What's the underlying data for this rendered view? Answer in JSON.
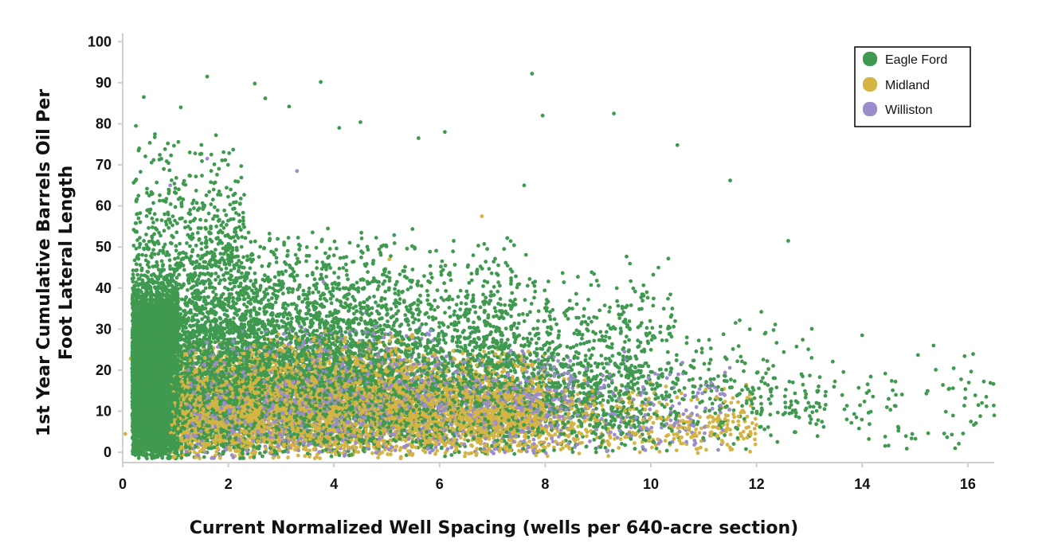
{
  "chart_data": {
    "type": "scatter",
    "title": "",
    "xlabel": "Current Normalized Well Spacing (wells per 640-acre section)",
    "ylabel_lines": [
      "1st Year Cumulative Barrels Oil Per",
      "Foot Lateral Length"
    ],
    "xlim": [
      0,
      16.5
    ],
    "ylim": [
      -2.5,
      102
    ],
    "x_ticks": [
      0,
      2,
      4,
      6,
      8,
      10,
      12,
      14,
      16
    ],
    "y_ticks": [
      0,
      10,
      20,
      30,
      40,
      50,
      60,
      70,
      80,
      90,
      100
    ],
    "grid": false,
    "legend_position": "top-right",
    "series": [
      {
        "name": "Eagle Ford",
        "color": "#3f9a4f",
        "note": "densest cluster 0.2-1.5 wells/section, 0-60 bbl/ft; sparse tail to 16.5",
        "points": [
          [
            0.4,
            86.5
          ],
          [
            1.6,
            91.5
          ],
          [
            2.5,
            89.8
          ],
          [
            3.75,
            90.2
          ],
          [
            7.75,
            92.2
          ],
          [
            7.95,
            82.0
          ],
          [
            9.3,
            82.5
          ],
          [
            10.5,
            74.8
          ],
          [
            11.5,
            66.2
          ],
          [
            12.6,
            51.5
          ],
          [
            14.0,
            28.5
          ],
          [
            15.35,
            26.0
          ],
          [
            15.65,
            15.5
          ],
          [
            16.2,
            11.5
          ],
          [
            16.5,
            9.0
          ],
          [
            4.5,
            80.4
          ],
          [
            3.15,
            84.2
          ],
          [
            5.6,
            76.5
          ],
          [
            6.1,
            78.0
          ],
          [
            7.6,
            65.0
          ],
          [
            1.1,
            84.0
          ],
          [
            0.25,
            79.5
          ],
          [
            0.3,
            73.5
          ],
          [
            2.7,
            86.2
          ],
          [
            4.1,
            79.0
          ]
        ]
      },
      {
        "name": "Midland",
        "color": "#d4b443",
        "note": "dense band 1-8 wells/section, 0-25 bbl/ft; sparse to ~12",
        "points": [
          [
            0.05,
            4.5
          ],
          [
            0.15,
            22.8
          ],
          [
            0.2,
            16.0
          ],
          [
            6.8,
            57.5
          ],
          [
            5.05,
            47.0
          ],
          [
            11.9,
            13.0
          ],
          [
            11.5,
            5.5
          ],
          [
            10.3,
            8.0
          ],
          [
            2.4,
            26.0
          ],
          [
            3.5,
            23.0
          ]
        ]
      },
      {
        "name": "Williston",
        "color": "#9b8ccc",
        "note": "spread 1-11 wells/section, mostly 0-30 bbl/ft",
        "points": [
          [
            1.6,
            71.5
          ],
          [
            3.3,
            68.5
          ],
          [
            0.9,
            65.0
          ],
          [
            3.8,
            41.5
          ],
          [
            9.5,
            24.5
          ],
          [
            11.0,
            3.0
          ],
          [
            9.2,
            21.5
          ],
          [
            2.2,
            45.0
          ],
          [
            4.6,
            34.0
          ],
          [
            7.3,
            19.0
          ]
        ]
      }
    ],
    "generated_density": [
      {
        "series": 0,
        "n": 6200,
        "xmin": 0.18,
        "xmax": 1.05,
        "ymin": -1.5,
        "ymax": 45,
        "ymode": 17
      },
      {
        "series": 0,
        "n": 2200,
        "xmin": 1.0,
        "xmax": 2.6,
        "ymin": -1.5,
        "ymax": 55,
        "ymode": 14
      },
      {
        "series": 0,
        "n": 420,
        "xmin": 0.2,
        "xmax": 2.3,
        "ymin": 40,
        "ymax": 80,
        "ymode": 48
      },
      {
        "series": 0,
        "n": 2100,
        "xmin": 2.6,
        "xmax": 5.0,
        "ymin": -1,
        "ymax": 55,
        "ymode": 15
      },
      {
        "series": 0,
        "n": 1200,
        "xmin": 5.0,
        "xmax": 7.5,
        "ymin": -1,
        "ymax": 55,
        "ymode": 12
      },
      {
        "series": 0,
        "n": 600,
        "xmin": 7.5,
        "xmax": 10.5,
        "ymin": 0,
        "ymax": 50,
        "ymode": 11
      },
      {
        "series": 0,
        "n": 230,
        "xmin": 10.5,
        "xmax": 13.2,
        "ymin": 0,
        "ymax": 35,
        "ymode": 10
      },
      {
        "series": 0,
        "n": 90,
        "xmin": 13.2,
        "xmax": 16.5,
        "ymin": 0,
        "ymax": 25,
        "ymode": 9
      },
      {
        "series": 1,
        "n": 1300,
        "xmin": 0.9,
        "xmax": 2.6,
        "ymin": -1.5,
        "ymax": 28,
        "ymode": 9
      },
      {
        "series": 1,
        "n": 2200,
        "xmin": 2.4,
        "xmax": 5.5,
        "ymin": -1.5,
        "ymax": 30,
        "ymode": 11
      },
      {
        "series": 1,
        "n": 1200,
        "xmin": 5.5,
        "xmax": 8.0,
        "ymin": -1,
        "ymax": 26,
        "ymode": 8
      },
      {
        "series": 1,
        "n": 300,
        "xmin": 8.0,
        "xmax": 12.0,
        "ymin": -1,
        "ymax": 18,
        "ymode": 6
      },
      {
        "series": 2,
        "n": 500,
        "xmin": 1.2,
        "xmax": 3.0,
        "ymin": -1.5,
        "ymax": 30,
        "ymode": 8
      },
      {
        "series": 2,
        "n": 950,
        "xmin": 3.0,
        "xmax": 6.0,
        "ymin": -1,
        "ymax": 32,
        "ymode": 12
      },
      {
        "series": 2,
        "n": 480,
        "xmin": 6.0,
        "xmax": 8.5,
        "ymin": -1,
        "ymax": 26,
        "ymode": 11
      },
      {
        "series": 2,
        "n": 160,
        "xmin": 8.5,
        "xmax": 11.5,
        "ymin": -1,
        "ymax": 24,
        "ymode": 9
      },
      {
        "series": 0,
        "n": 1400,
        "xmin": 0.25,
        "xmax": 10.0,
        "ymin": 0,
        "ymax": 40,
        "ymode": 14
      },
      {
        "series": 1,
        "n": 500,
        "xmin": 1.0,
        "xmax": 9.0,
        "ymin": 0,
        "ymax": 20,
        "ymode": 8
      }
    ]
  }
}
